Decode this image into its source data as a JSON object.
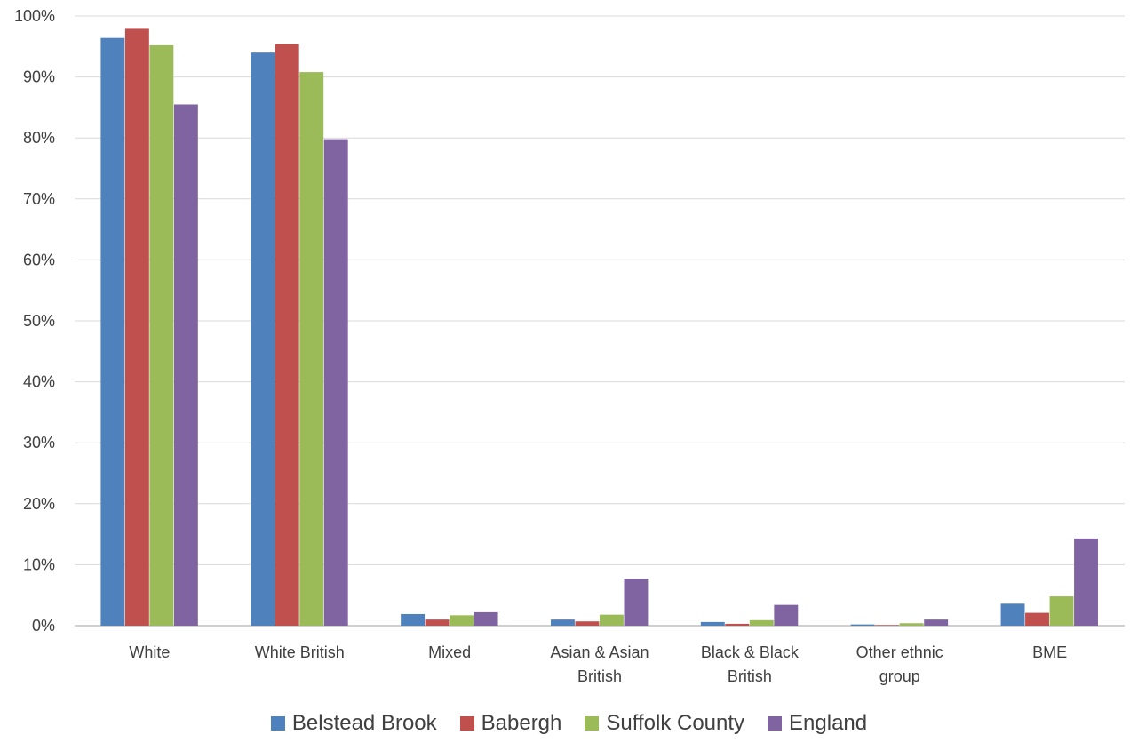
{
  "chart_data": {
    "type": "bar",
    "title": "",
    "xlabel": "",
    "ylabel": "",
    "ylim": [
      0,
      100
    ],
    "yticks": [
      "0%",
      "10%",
      "20%",
      "30%",
      "40%",
      "50%",
      "60%",
      "70%",
      "80%",
      "90%",
      "100%"
    ],
    "categories": [
      [
        "White"
      ],
      [
        "White British"
      ],
      [
        "Mixed"
      ],
      [
        "Asian & Asian",
        "British"
      ],
      [
        "Black & Black",
        "British"
      ],
      [
        "Other ethnic",
        "group"
      ],
      [
        "BME"
      ]
    ],
    "series": [
      {
        "name": "Belstead Brook",
        "color": "#4F81BD",
        "values": [
          96.4,
          94.0,
          1.9,
          1.0,
          0.6,
          0.2,
          3.6
        ]
      },
      {
        "name": "Babergh",
        "color": "#C0504D",
        "values": [
          97.9,
          95.4,
          1.0,
          0.7,
          0.3,
          0.1,
          2.1
        ]
      },
      {
        "name": "Suffolk County",
        "color": "#9BBB59",
        "values": [
          95.2,
          90.8,
          1.7,
          1.8,
          0.9,
          0.4,
          4.8
        ]
      },
      {
        "name": "England",
        "color": "#8064A2",
        "values": [
          85.5,
          79.8,
          2.2,
          7.7,
          3.4,
          1.0,
          14.3
        ]
      }
    ],
    "grid": true,
    "legend_position": "bottom"
  }
}
